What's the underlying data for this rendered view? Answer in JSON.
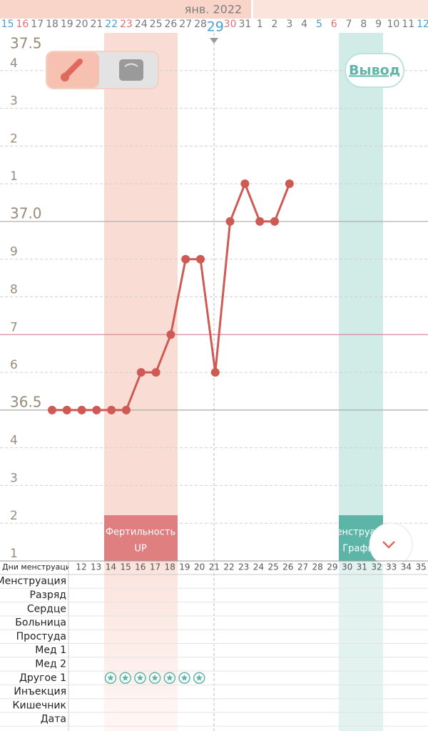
{
  "header": {
    "month": "янв. 2022"
  },
  "buttons": {
    "output": "Вывод"
  },
  "chart_data": {
    "type": "line",
    "categories": [
      "15",
      "16",
      "17",
      "18",
      "19",
      "20",
      "21",
      "22",
      "23",
      "24",
      "25",
      "26",
      "27",
      "28",
      "29",
      "30",
      "31",
      "1",
      "2",
      "3",
      "4",
      "5",
      "6",
      "7",
      "8",
      "9",
      "10",
      "11",
      "12"
    ],
    "values": [
      null,
      null,
      null,
      36.5,
      36.5,
      36.5,
      36.5,
      36.5,
      36.5,
      36.6,
      36.6,
      36.7,
      36.9,
      36.9,
      36.6,
      37.0,
      37.1,
      37.0,
      37.0,
      37.1,
      null,
      null,
      null,
      null,
      null,
      null,
      null,
      null,
      null
    ],
    "color": "#cf5a55",
    "ylim": [
      36.1,
      37.5
    ],
    "yticks": [
      37.5,
      {
        "value": 37.4,
        "label": "4"
      },
      {
        "value": 37.3,
        "label": "3"
      },
      {
        "value": 37.2,
        "label": "2"
      },
      {
        "value": 37.1,
        "label": "1"
      },
      {
        "value": 37.0,
        "label": "37.0"
      },
      {
        "value": 36.9,
        "label": "9"
      },
      {
        "value": 36.8,
        "label": "8"
      },
      {
        "value": 36.7,
        "label": "7"
      },
      {
        "value": 36.6,
        "label": "6"
      },
      36.5,
      {
        "value": 36.4,
        "label": "4"
      },
      {
        "value": 36.3,
        "label": "3"
      },
      {
        "value": 36.2,
        "label": "2"
      },
      {
        "value": 36.1,
        "label": "1"
      }
    ],
    "coverline": 36.7,
    "coverline_color": "#d98aa0",
    "bands": [
      {
        "label": "Фертильность",
        "sublabel": "UP",
        "color": "#e07f7f"
      },
      {
        "label": "Менструация",
        "sublabel": "График",
        "color": "#5db5a8"
      }
    ]
  },
  "table": {
    "header": "Дни менструаци",
    "columns": [
      12,
      13,
      14,
      15,
      16,
      17,
      18,
      19,
      20,
      21,
      22,
      23,
      24,
      25,
      26,
      27,
      28,
      29,
      30,
      31,
      32,
      33,
      34,
      35
    ],
    "rows": [
      "Менструация",
      "Разряд",
      "Сердце",
      "Больница",
      "Простуда",
      "Мед 1",
      "Мед 2",
      "Другое 1",
      "Инъекция",
      "Кишечник",
      "Дата"
    ]
  }
}
